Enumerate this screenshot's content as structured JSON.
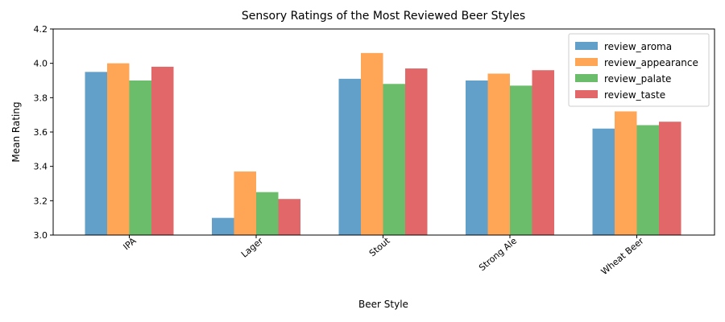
{
  "chart_data": {
    "type": "bar",
    "title": "Sensory Ratings of the Most Reviewed Beer Styles",
    "xlabel": "Beer Style",
    "ylabel": "Mean Rating",
    "ylim": [
      3.0,
      4.2
    ],
    "yticks": [
      "3.0",
      "3.2",
      "3.4",
      "3.6",
      "3.8",
      "4.0",
      "4.2"
    ],
    "categories": [
      "IPA",
      "Lager",
      "Stout",
      "Strong Ale",
      "Wheat Beer"
    ],
    "legend_position": "top-right",
    "grid": false,
    "series": [
      {
        "name": "review_aroma",
        "color": "#1f77b4",
        "values": [
          3.95,
          3.1,
          3.91,
          3.9,
          3.62
        ]
      },
      {
        "name": "review_appearance",
        "color": "#ff7f0e",
        "values": [
          4.0,
          3.37,
          4.06,
          3.94,
          3.72
        ]
      },
      {
        "name": "review_palate",
        "color": "#2ca02c",
        "values": [
          3.9,
          3.25,
          3.88,
          3.87,
          3.64
        ]
      },
      {
        "name": "review_taste",
        "color": "#d62728",
        "values": [
          3.98,
          3.21,
          3.97,
          3.96,
          3.66
        ]
      }
    ]
  }
}
